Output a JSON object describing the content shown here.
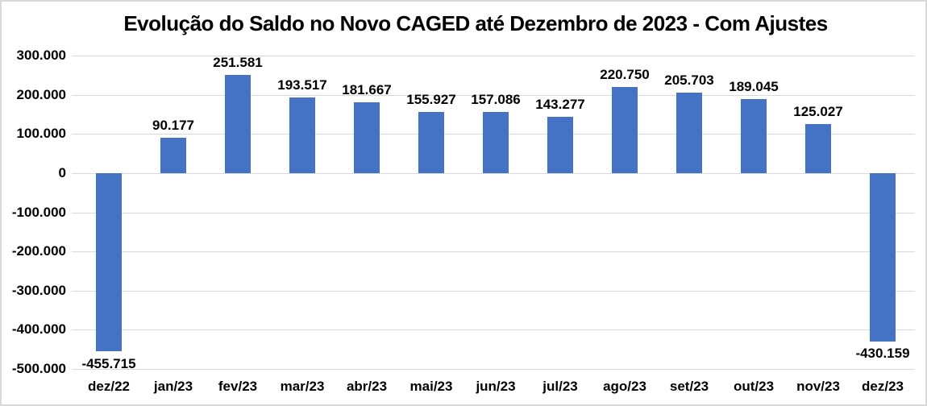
{
  "chart_data": {
    "type": "bar",
    "title": "Evolução do Saldo no Novo CAGED até Dezembro de 2023 - Com Ajustes",
    "categories": [
      "dez/22",
      "jan/23",
      "fev/23",
      "mar/23",
      "abr/23",
      "mai/23",
      "jun/23",
      "jul/23",
      "ago/23",
      "set/23",
      "out/23",
      "nov/23",
      "dez/23"
    ],
    "values": [
      -455715,
      90177,
      251581,
      193517,
      181667,
      155927,
      157086,
      143277,
      220750,
      205703,
      189045,
      125027,
      -430159
    ],
    "value_labels": [
      "-455.715",
      "90.177",
      "251.581",
      "193.517",
      "181.667",
      "155.927",
      "157.086",
      "143.277",
      "220.750",
      "205.703",
      "189.045",
      "125.027",
      "-430.159"
    ],
    "y_ticks": [
      300000,
      200000,
      100000,
      0,
      -100000,
      -200000,
      -300000,
      -400000,
      -500000
    ],
    "y_tick_labels": [
      "300.000",
      "200.000",
      "100.000",
      "0",
      "-100.000",
      "-200.000",
      "-300.000",
      "-400.000",
      "-500.000"
    ],
    "ylim": [
      -500000,
      300000
    ],
    "xlabel": "",
    "ylabel": "",
    "grid": true,
    "legend": false,
    "data_label_position": "outside-end",
    "bar_color": "#4472c4",
    "gridline_color": "#d9d9d9",
    "text_color": "#000000",
    "background_color": "#ffffff",
    "border_color": "#d9d9d9"
  }
}
